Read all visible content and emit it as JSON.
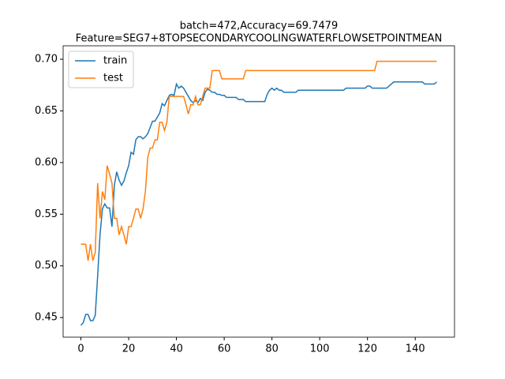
{
  "chart_data": {
    "type": "line",
    "title": "batch=472,Accuracy=69.7479",
    "subtitle": "Feature=SEG7+8TOPSECONDARYCOOLINGWATERFLOWSETPOINTMEAN",
    "x": [
      0,
      1,
      2,
      3,
      4,
      5,
      6,
      7,
      8,
      9,
      10,
      11,
      12,
      13,
      14,
      15,
      16,
      17,
      18,
      19,
      20,
      21,
      22,
      23,
      24,
      25,
      26,
      27,
      28,
      29,
      30,
      31,
      32,
      33,
      34,
      35,
      36,
      37,
      38,
      39,
      40,
      41,
      42,
      43,
      44,
      45,
      46,
      47,
      48,
      49,
      50,
      51,
      52,
      53,
      54,
      55,
      56,
      57,
      58,
      59,
      60,
      61,
      62,
      63,
      64,
      65,
      66,
      67,
      68,
      69,
      70,
      71,
      72,
      73,
      74,
      75,
      76,
      77,
      78,
      79,
      80,
      81,
      82,
      83,
      84,
      85,
      86,
      87,
      88,
      89,
      90,
      91,
      92,
      93,
      94,
      95,
      96,
      97,
      98,
      99,
      100,
      101,
      102,
      103,
      104,
      105,
      106,
      107,
      108,
      109,
      110,
      111,
      112,
      113,
      114,
      115,
      116,
      117,
      118,
      119,
      120,
      121,
      122,
      123,
      124,
      125,
      126,
      127,
      128,
      129,
      130,
      131,
      132,
      133,
      134,
      135,
      136,
      137,
      138,
      139,
      140,
      141,
      142,
      143,
      144,
      145,
      146,
      147,
      148,
      149
    ],
    "series": [
      {
        "name": "train",
        "color": "#1f77b4",
        "values": [
          0.4425,
          0.445,
          0.453,
          0.453,
          0.447,
          0.447,
          0.452,
          0.49,
          0.53,
          0.555,
          0.56,
          0.556,
          0.556,
          0.538,
          0.578,
          0.591,
          0.583,
          0.578,
          0.582,
          0.59,
          0.597,
          0.61,
          0.608,
          0.622,
          0.625,
          0.625,
          0.623,
          0.625,
          0.628,
          0.634,
          0.64,
          0.64,
          0.644,
          0.648,
          0.657,
          0.655,
          0.66,
          0.665,
          0.666,
          0.665,
          0.676,
          0.672,
          0.674,
          0.672,
          0.668,
          0.664,
          0.66,
          0.658,
          0.66,
          0.658,
          0.662,
          0.66,
          0.668,
          0.671,
          0.67,
          0.668,
          0.668,
          0.666,
          0.666,
          0.665,
          0.665,
          0.663,
          0.663,
          0.663,
          0.663,
          0.663,
          0.661,
          0.661,
          0.661,
          0.659,
          0.659,
          0.659,
          0.659,
          0.659,
          0.659,
          0.659,
          0.659,
          0.659,
          0.666,
          0.67,
          0.672,
          0.67,
          0.672,
          0.67,
          0.67,
          0.668,
          0.668,
          0.668,
          0.668,
          0.668,
          0.668,
          0.67,
          0.67,
          0.67,
          0.67,
          0.67,
          0.67,
          0.67,
          0.67,
          0.67,
          0.67,
          0.67,
          0.67,
          0.67,
          0.67,
          0.67,
          0.67,
          0.67,
          0.67,
          0.67,
          0.67,
          0.672,
          0.672,
          0.672,
          0.672,
          0.672,
          0.672,
          0.672,
          0.672,
          0.672,
          0.674,
          0.674,
          0.672,
          0.672,
          0.672,
          0.672,
          0.672,
          0.672,
          0.672,
          0.674,
          0.676,
          0.678,
          0.678,
          0.678,
          0.678,
          0.678,
          0.678,
          0.678,
          0.678,
          0.678,
          0.678,
          0.678,
          0.678,
          0.678,
          0.676,
          0.676,
          0.676,
          0.676,
          0.676,
          0.678
        ]
      },
      {
        "name": "test",
        "color": "#ff7f0e",
        "values": [
          0.521,
          0.521,
          0.521,
          0.505,
          0.521,
          0.505,
          0.513,
          0.58,
          0.546,
          0.572,
          0.564,
          0.597,
          0.589,
          0.58,
          0.546,
          0.546,
          0.53,
          0.538,
          0.53,
          0.521,
          0.538,
          0.538,
          0.546,
          0.555,
          0.555,
          0.546,
          0.555,
          0.572,
          0.605,
          0.614,
          0.614,
          0.622,
          0.622,
          0.639,
          0.639,
          0.631,
          0.639,
          0.664,
          0.664,
          0.664,
          0.664,
          0.664,
          0.664,
          0.664,
          0.656,
          0.647,
          0.656,
          0.656,
          0.664,
          0.656,
          0.656,
          0.664,
          0.672,
          0.672,
          0.672,
          0.689,
          0.689,
          0.689,
          0.689,
          0.681,
          0.681,
          0.681,
          0.681,
          0.681,
          0.681,
          0.681,
          0.681,
          0.681,
          0.681,
          0.689,
          0.689,
          0.689,
          0.689,
          0.689,
          0.689,
          0.689,
          0.689,
          0.689,
          0.689,
          0.689,
          0.689,
          0.689,
          0.689,
          0.689,
          0.689,
          0.689,
          0.689,
          0.689,
          0.689,
          0.689,
          0.689,
          0.689,
          0.689,
          0.689,
          0.689,
          0.689,
          0.689,
          0.689,
          0.689,
          0.689,
          0.689,
          0.689,
          0.689,
          0.689,
          0.689,
          0.689,
          0.689,
          0.689,
          0.689,
          0.689,
          0.689,
          0.689,
          0.689,
          0.689,
          0.689,
          0.689,
          0.689,
          0.689,
          0.689,
          0.689,
          0.689,
          0.689,
          0.689,
          0.689,
          0.698,
          0.698,
          0.698,
          0.698,
          0.698,
          0.698,
          0.698,
          0.698,
          0.698,
          0.698,
          0.698,
          0.698,
          0.698,
          0.698,
          0.698,
          0.698,
          0.698,
          0.698,
          0.698,
          0.698,
          0.698,
          0.698,
          0.698,
          0.698,
          0.698,
          0.698
        ]
      }
    ],
    "xlim": [
      -7.45,
      156.45
    ],
    "xticks": [
      0,
      20,
      40,
      60,
      80,
      100,
      120,
      140
    ],
    "ylim": [
      0.431,
      0.713
    ],
    "yticks": [
      0.45,
      {
        "value": 0.5,
        "label": "0.50"
      },
      0.55,
      {
        "value": 0.6,
        "label": "0.60"
      },
      0.65,
      {
        "value": 0.7,
        "label": "0.70"
      }
    ],
    "legend": "upper left",
    "grid": false
  }
}
